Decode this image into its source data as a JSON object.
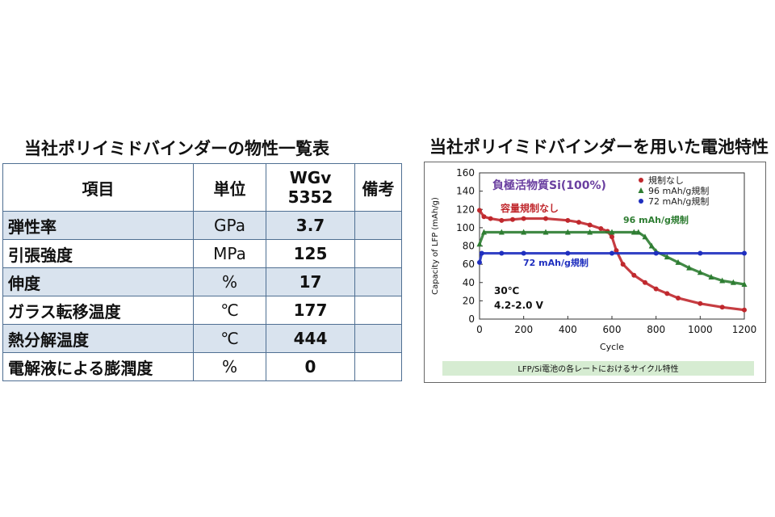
{
  "left_title": "当社ポリイミドバインダーの物性一覧表",
  "right_title": "当社ポリイミドバインダーを用いた電池特性",
  "table": {
    "headers": [
      "項目",
      "単位",
      "WGv",
      "5352",
      "備考"
    ],
    "rows": [
      {
        "item": "弾性率",
        "unit": "GPa",
        "value": "3.7",
        "note": ""
      },
      {
        "item": "引張強度",
        "unit": "MPa",
        "value": "125",
        "note": ""
      },
      {
        "item": "伸度",
        "unit": "%",
        "value": "17",
        "note": ""
      },
      {
        "item": "ガラス転移温度",
        "unit": "℃",
        "value": "177",
        "note": ""
      },
      {
        "item": "熱分解温度",
        "unit": "℃",
        "value": "444",
        "note": ""
      },
      {
        "item": "電解液による膨潤度",
        "unit": "%",
        "value": "0",
        "note": ""
      }
    ]
  },
  "chart_data": {
    "type": "scatter",
    "title": "負極活物質Si(100%)",
    "xlabel": "Cycle",
    "ylabel": "Capacity of LFP (mAh/g)",
    "xlim": [
      0,
      1200
    ],
    "ylim": [
      0,
      160
    ],
    "xticks": [
      0,
      200,
      400,
      600,
      800,
      1000,
      1200
    ],
    "yticks": [
      0,
      20,
      40,
      60,
      80,
      100,
      120,
      140,
      160
    ],
    "grid": false,
    "legend_position": "top-right",
    "legend": [
      "規制なし",
      "96 mAh/g規制",
      "72 mAh/g規制"
    ],
    "annotations": [
      "容量規制なし",
      "96 mAh/g規制",
      "72 mAh/g規制",
      "30℃",
      "4.2-2.0 V"
    ],
    "caption": "LFP/Si電池の各レートにおけるサイクル特性",
    "series": [
      {
        "name": "規制なし",
        "color": "#c0282d",
        "marker": "circle",
        "x": [
          0,
          20,
          50,
          100,
          150,
          200,
          300,
          400,
          450,
          500,
          550,
          580,
          600,
          620,
          650,
          700,
          750,
          800,
          850,
          900,
          1000,
          1100,
          1200
        ],
        "y": [
          119,
          112,
          110,
          108,
          109,
          110,
          110,
          108,
          106,
          103,
          99,
          96,
          90,
          75,
          60,
          48,
          40,
          33,
          28,
          23,
          17,
          13,
          10
        ]
      },
      {
        "name": "96 mAh/g規制",
        "color": "#2e7d32",
        "marker": "triangle",
        "x": [
          0,
          20,
          100,
          200,
          300,
          400,
          500,
          600,
          700,
          720,
          750,
          780,
          800,
          850,
          900,
          950,
          1000,
          1050,
          1100,
          1150,
          1200
        ],
        "y": [
          82,
          95,
          95,
          95,
          95,
          95,
          95,
          95,
          95,
          95,
          90,
          80,
          74,
          68,
          62,
          56,
          51,
          46,
          42,
          40,
          38
        ]
      },
      {
        "name": "72 mAh/g規制",
        "color": "#1f2fbf",
        "marker": "circle",
        "x": [
          0,
          10,
          100,
          200,
          400,
          600,
          800,
          1000,
          1200
        ],
        "y": [
          62,
          72,
          72,
          72,
          72,
          72,
          72,
          72,
          72
        ]
      }
    ]
  }
}
